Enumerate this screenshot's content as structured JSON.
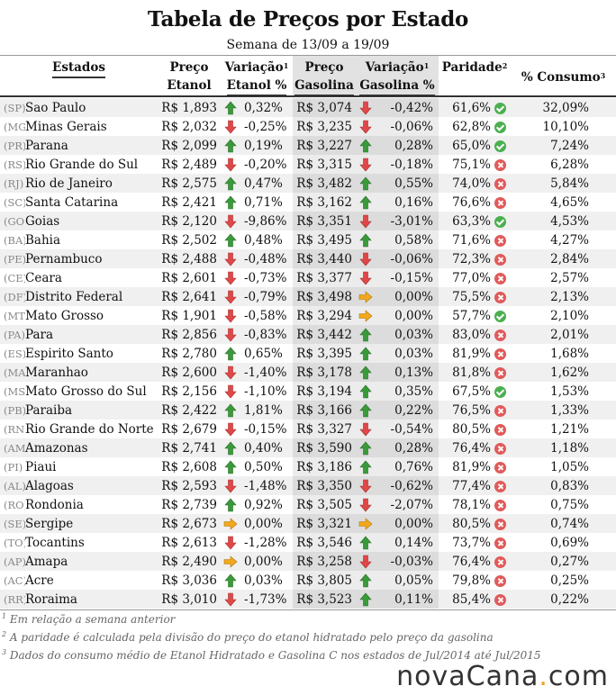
{
  "title": "Tabela de Preços por Estado",
  "subtitle": "Semana de 13/09 a 19/09",
  "headers": {
    "estados": "Estados",
    "preco_etanol_1": "Preço",
    "preco_etanol_2": "Etanol",
    "var_etanol_1": "Variação",
    "var_etanol_2": "Etanol %",
    "preco_gas_1": "Preço",
    "preco_gas_2": "Gasolina",
    "var_gas_1": "Variação",
    "var_gas_2": "Gasolina %",
    "paridade": "Paridade",
    "consumo": "% Consumo",
    "sup1": "1",
    "sup2": "2",
    "sup3": "3"
  },
  "colors": {
    "up": "#3a9a3a",
    "down": "#e04848",
    "flat": "#f2a81d",
    "ok": "#4caf50",
    "no": "#e05a5a"
  },
  "rows": [
    {
      "code": "(SP)",
      "state": "Sao Paulo",
      "etanol": "R$ 1,893",
      "ve": "0,32%",
      "de": "up",
      "gas": "R$ 3,074",
      "vg": "-0,42%",
      "dg": "down",
      "par": "61,6%",
      "ok": true,
      "cons": "32,09%"
    },
    {
      "code": "(MG)",
      "state": "Minas Gerais",
      "etanol": "R$ 2,032",
      "ve": "-0,25%",
      "de": "down",
      "gas": "R$ 3,235",
      "vg": "-0,06%",
      "dg": "down",
      "par": "62,8%",
      "ok": true,
      "cons": "10,10%"
    },
    {
      "code": "(PR)",
      "state": "Parana",
      "etanol": "R$ 2,099",
      "ve": "0,19%",
      "de": "up",
      "gas": "R$ 3,227",
      "vg": "0,28%",
      "dg": "up",
      "par": "65,0%",
      "ok": true,
      "cons": "7,24%"
    },
    {
      "code": "(RS)",
      "state": "Rio Grande do Sul",
      "etanol": "R$ 2,489",
      "ve": "-0,20%",
      "de": "down",
      "gas": "R$ 3,315",
      "vg": "-0,18%",
      "dg": "down",
      "par": "75,1%",
      "ok": false,
      "cons": "6,28%"
    },
    {
      "code": "(RJ)",
      "state": "Rio de Janeiro",
      "etanol": "R$ 2,575",
      "ve": "0,47%",
      "de": "up",
      "gas": "R$ 3,482",
      "vg": "0,55%",
      "dg": "up",
      "par": "74,0%",
      "ok": false,
      "cons": "5,84%"
    },
    {
      "code": "(SC)",
      "state": "Santa Catarina",
      "etanol": "R$ 2,421",
      "ve": "0,71%",
      "de": "up",
      "gas": "R$ 3,162",
      "vg": "0,16%",
      "dg": "up",
      "par": "76,6%",
      "ok": false,
      "cons": "4,65%"
    },
    {
      "code": "(GO)",
      "state": "Goias",
      "etanol": "R$ 2,120",
      "ve": "-9,86%",
      "de": "down",
      "gas": "R$ 3,351",
      "vg": "-3,01%",
      "dg": "down",
      "par": "63,3%",
      "ok": true,
      "cons": "4,53%"
    },
    {
      "code": "(BA)",
      "state": "Bahia",
      "etanol": "R$ 2,502",
      "ve": "0,48%",
      "de": "up",
      "gas": "R$ 3,495",
      "vg": "0,58%",
      "dg": "up",
      "par": "71,6%",
      "ok": false,
      "cons": "4,27%"
    },
    {
      "code": "(PE)",
      "state": "Pernambuco",
      "etanol": "R$ 2,488",
      "ve": "-0,48%",
      "de": "down",
      "gas": "R$ 3,440",
      "vg": "-0,06%",
      "dg": "down",
      "par": "72,3%",
      "ok": false,
      "cons": "2,84%"
    },
    {
      "code": "(CE)",
      "state": "Ceara",
      "etanol": "R$ 2,601",
      "ve": "-0,73%",
      "de": "down",
      "gas": "R$ 3,377",
      "vg": "-0,15%",
      "dg": "down",
      "par": "77,0%",
      "ok": false,
      "cons": "2,57%"
    },
    {
      "code": "(DF)",
      "state": "Distrito Federal",
      "etanol": "R$ 2,641",
      "ve": "-0,79%",
      "de": "down",
      "gas": "R$ 3,498",
      "vg": "0,00%",
      "dg": "flat",
      "par": "75,5%",
      "ok": false,
      "cons": "2,13%"
    },
    {
      "code": "(MT)",
      "state": "Mato Grosso",
      "etanol": "R$ 1,901",
      "ve": "-0,58%",
      "de": "down",
      "gas": "R$ 3,294",
      "vg": "0,00%",
      "dg": "flat",
      "par": "57,7%",
      "ok": true,
      "cons": "2,10%"
    },
    {
      "code": "(PA)",
      "state": "Para",
      "etanol": "R$ 2,856",
      "ve": "-0,83%",
      "de": "down",
      "gas": "R$ 3,442",
      "vg": "0,03%",
      "dg": "up",
      "par": "83,0%",
      "ok": false,
      "cons": "2,01%"
    },
    {
      "code": "(ES)",
      "state": "Espirito Santo",
      "etanol": "R$ 2,780",
      "ve": "0,65%",
      "de": "up",
      "gas": "R$ 3,395",
      "vg": "0,03%",
      "dg": "up",
      "par": "81,9%",
      "ok": false,
      "cons": "1,68%"
    },
    {
      "code": "(MA)",
      "state": "Maranhao",
      "etanol": "R$ 2,600",
      "ve": "-1,40%",
      "de": "down",
      "gas": "R$ 3,178",
      "vg": "0,13%",
      "dg": "up",
      "par": "81,8%",
      "ok": false,
      "cons": "1,62%"
    },
    {
      "code": "(MS)",
      "state": "Mato Grosso do Sul",
      "etanol": "R$ 2,156",
      "ve": "-1,10%",
      "de": "down",
      "gas": "R$ 3,194",
      "vg": "0,35%",
      "dg": "up",
      "par": "67,5%",
      "ok": true,
      "cons": "1,53%"
    },
    {
      "code": "(PB)",
      "state": "Paraiba",
      "etanol": "R$ 2,422",
      "ve": "1,81%",
      "de": "up",
      "gas": "R$ 3,166",
      "vg": "0,22%",
      "dg": "up",
      "par": "76,5%",
      "ok": false,
      "cons": "1,33%"
    },
    {
      "code": "(RN)",
      "state": "Rio Grande do Norte",
      "etanol": "R$ 2,679",
      "ve": "-0,15%",
      "de": "down",
      "gas": "R$ 3,327",
      "vg": "-0,54%",
      "dg": "down",
      "par": "80,5%",
      "ok": false,
      "cons": "1,21%"
    },
    {
      "code": "(AM)",
      "state": "Amazonas",
      "etanol": "R$ 2,741",
      "ve": "0,40%",
      "de": "up",
      "gas": "R$ 3,590",
      "vg": "0,28%",
      "dg": "up",
      "par": "76,4%",
      "ok": false,
      "cons": "1,18%"
    },
    {
      "code": "(PI)",
      "state": "Piaui",
      "etanol": "R$ 2,608",
      "ve": "0,50%",
      "de": "up",
      "gas": "R$ 3,186",
      "vg": "0,76%",
      "dg": "up",
      "par": "81,9%",
      "ok": false,
      "cons": "1,05%"
    },
    {
      "code": "(AL)",
      "state": "Alagoas",
      "etanol": "R$ 2,593",
      "ve": "-1,48%",
      "de": "down",
      "gas": "R$ 3,350",
      "vg": "-0,62%",
      "dg": "down",
      "par": "77,4%",
      "ok": false,
      "cons": "0,83%"
    },
    {
      "code": "(RO)",
      "state": "Rondonia",
      "etanol": "R$ 2,739",
      "ve": "0,92%",
      "de": "up",
      "gas": "R$ 3,505",
      "vg": "-2,07%",
      "dg": "down",
      "par": "78,1%",
      "ok": false,
      "cons": "0,75%"
    },
    {
      "code": "(SE)",
      "state": "Sergipe",
      "etanol": "R$ 2,673",
      "ve": "0,00%",
      "de": "flat",
      "gas": "R$ 3,321",
      "vg": "0,00%",
      "dg": "flat",
      "par": "80,5%",
      "ok": false,
      "cons": "0,74%"
    },
    {
      "code": "(TO)",
      "state": "Tocantins",
      "etanol": "R$ 2,613",
      "ve": "-1,28%",
      "de": "down",
      "gas": "R$ 3,546",
      "vg": "0,14%",
      "dg": "up",
      "par": "73,7%",
      "ok": false,
      "cons": "0,69%"
    },
    {
      "code": "(AP)",
      "state": "Amapa",
      "etanol": "R$ 2,490",
      "ve": "0,00%",
      "de": "flat",
      "gas": "R$ 3,258",
      "vg": "-0,03%",
      "dg": "down",
      "par": "76,4%",
      "ok": false,
      "cons": "0,27%"
    },
    {
      "code": "(AC)",
      "state": "Acre",
      "etanol": "R$ 3,036",
      "ve": "0,03%",
      "de": "up",
      "gas": "R$ 3,805",
      "vg": "0,05%",
      "dg": "up",
      "par": "79,8%",
      "ok": false,
      "cons": "0,25%"
    },
    {
      "code": "(RR)",
      "state": "Roraima",
      "etanol": "R$ 3,010",
      "ve": "-1,73%",
      "de": "down",
      "gas": "R$ 3,523",
      "vg": "0,11%",
      "dg": "up",
      "par": "85,4%",
      "ok": false,
      "cons": "0,22%"
    }
  ],
  "notes": [
    {
      "num": "1",
      "text": "Em relação a semana anterior"
    },
    {
      "num": "2",
      "text": "A paridade é calculada pela divisão do preço do etanol hidratado pelo preço da gasolina"
    },
    {
      "num": "3",
      "text": "Dados do consumo médio de Etanol Hidratado e Gasolina C nos estados de Jul/2014 até Jul/2015"
    }
  ],
  "logo": {
    "part1": "nova",
    "part2": "Cana",
    "dot": ".",
    "part3": "com"
  }
}
